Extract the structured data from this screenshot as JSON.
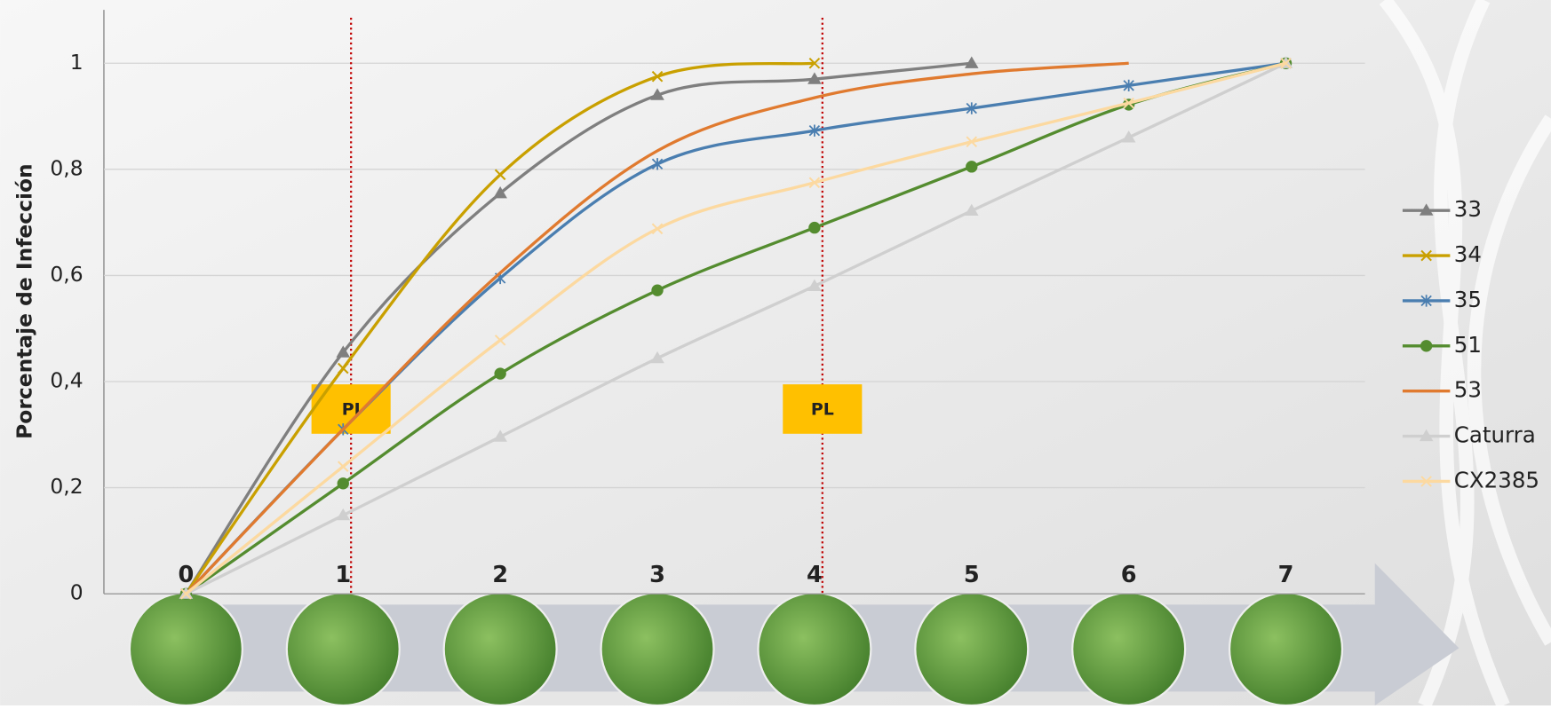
{
  "chart_data": {
    "type": "line",
    "y_label": "Porcentaje de Infección",
    "categories": [
      "0",
      "1",
      "2",
      "3",
      "4",
      "5",
      "6",
      "7"
    ],
    "ylim": [
      0,
      1.05
    ],
    "yticks": [
      0,
      {
        "value": 0.2,
        "label": "0,2"
      },
      {
        "value": 0.4,
        "label": "0,4"
      },
      {
        "value": 0.6,
        "label": "0,6"
      },
      {
        "value": 0.8,
        "label": "0,8"
      },
      1
    ],
    "grid": true,
    "legend": "right",
    "series": [
      {
        "name": "33",
        "color": "#7f7f7f",
        "marker": "triangle",
        "values": [
          0,
          0.455,
          0.755,
          0.94,
          0.97,
          1.0,
          null,
          null
        ]
      },
      {
        "name": "34",
        "color": "#c9a000",
        "marker": "x",
        "values": [
          0,
          0.425,
          0.79,
          0.975,
          1.0,
          null,
          null,
          null
        ]
      },
      {
        "name": "35",
        "color": "#4a7eb0",
        "marker": "star",
        "values": [
          0,
          0.31,
          0.595,
          0.81,
          0.873,
          0.915,
          0.958,
          1.0
        ]
      },
      {
        "name": "51",
        "color": "#548c2f",
        "marker": "circle",
        "values": [
          0,
          0.208,
          0.415,
          0.572,
          0.69,
          0.805,
          0.922,
          1.0
        ]
      },
      {
        "name": "53",
        "color": "#e07a2f",
        "marker": "none",
        "values": [
          0,
          0.31,
          0.605,
          0.835,
          0.935,
          0.98,
          1.0,
          null
        ]
      },
      {
        "name": "Caturra",
        "color": "#cfcfcf",
        "marker": "triangle",
        "values": [
          0,
          0.148,
          0.296,
          0.444,
          0.58,
          0.722,
          0.86,
          1.0
        ]
      },
      {
        "name": "CX2385",
        "color": "#fcd9a0",
        "marker": "x",
        "values": [
          0,
          0.24,
          0.478,
          0.688,
          0.775,
          0.852,
          0.925,
          1.0
        ]
      }
    ],
    "annotations": [
      {
        "text": "PI",
        "x": 1
      },
      {
        "text": "PL",
        "x": 4
      }
    ]
  }
}
